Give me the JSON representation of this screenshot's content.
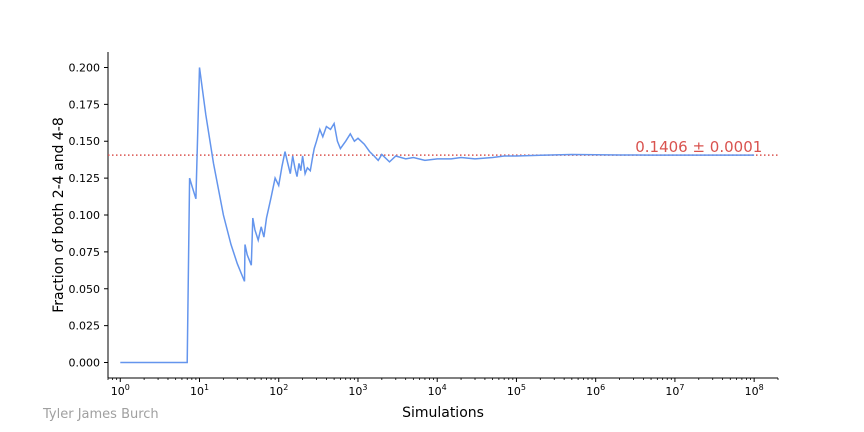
{
  "chart_data": {
    "type": "line",
    "xlabel": "Simulations",
    "ylabel": "Fraction of both 2-4 and 4-8",
    "x_scale": "log",
    "xlim": [
      0.7,
      200000000
    ],
    "ylim": [
      -0.0105,
      0.2105
    ],
    "x_ticks": [
      1,
      10,
      100,
      1000,
      10000,
      100000,
      1000000,
      10000000,
      100000000
    ],
    "x_tick_exponents": [
      "0",
      "1",
      "2",
      "3",
      "4",
      "5",
      "6",
      "7",
      "8"
    ],
    "y_ticks": [
      0.0,
      0.025,
      0.05,
      0.075,
      0.1,
      0.125,
      0.15,
      0.175,
      0.2
    ],
    "y_tick_labels": [
      "0.000",
      "0.025",
      "0.050",
      "0.075",
      "0.100",
      "0.125",
      "0.150",
      "0.175",
      "0.200"
    ],
    "grid": false,
    "line_color": "#6495ED",
    "reference_line": {
      "value": 0.1406,
      "color": "#D9534F",
      "style": "dotted"
    },
    "annotation": {
      "text": "0.1406 ± 0.0001",
      "x": 20000000,
      "y": 0.1406,
      "color": "#D9534F"
    },
    "series": [
      {
        "x": [
          1,
          7,
          7.5,
          8,
          9,
          10,
          12,
          15,
          20,
          25,
          30,
          37,
          37.5,
          40,
          45,
          47,
          50,
          55,
          60,
          65,
          70,
          80,
          90,
          100,
          110,
          120,
          130,
          140,
          150,
          160,
          170,
          180,
          190,
          200,
          215,
          230,
          250,
          265,
          280,
          300,
          330,
          360,
          400,
          450,
          500,
          550,
          600,
          700,
          800,
          900,
          1000,
          1200,
          1400,
          1600,
          1800,
          2000,
          2500,
          3000,
          4000,
          5000,
          7000,
          10000,
          15000,
          20000,
          30000,
          50000,
          70000,
          100000,
          200000,
          500000,
          1000000,
          2000000,
          5000000,
          10000000,
          30000000,
          100000000
        ],
        "y": [
          0.0,
          0.0,
          0.125,
          0.12,
          0.111,
          0.2,
          0.168,
          0.135,
          0.1,
          0.08,
          0.067,
          0.055,
          0.08,
          0.073,
          0.066,
          0.098,
          0.09,
          0.083,
          0.092,
          0.085,
          0.098,
          0.112,
          0.125,
          0.12,
          0.133,
          0.143,
          0.135,
          0.128,
          0.14,
          0.132,
          0.126,
          0.135,
          0.13,
          0.14,
          0.128,
          0.132,
          0.13,
          0.138,
          0.145,
          0.15,
          0.158,
          0.153,
          0.16,
          0.158,
          0.162,
          0.15,
          0.145,
          0.15,
          0.155,
          0.15,
          0.152,
          0.148,
          0.143,
          0.14,
          0.137,
          0.141,
          0.136,
          0.14,
          0.138,
          0.139,
          0.137,
          0.138,
          0.138,
          0.139,
          0.138,
          0.139,
          0.14,
          0.14,
          0.1405,
          0.141,
          0.1408,
          0.1407,
          0.1406,
          0.1406,
          0.1406,
          0.1406
        ]
      }
    ]
  },
  "credit": {
    "text": "Tyler James Burch",
    "color": "#A0A0A0"
  }
}
